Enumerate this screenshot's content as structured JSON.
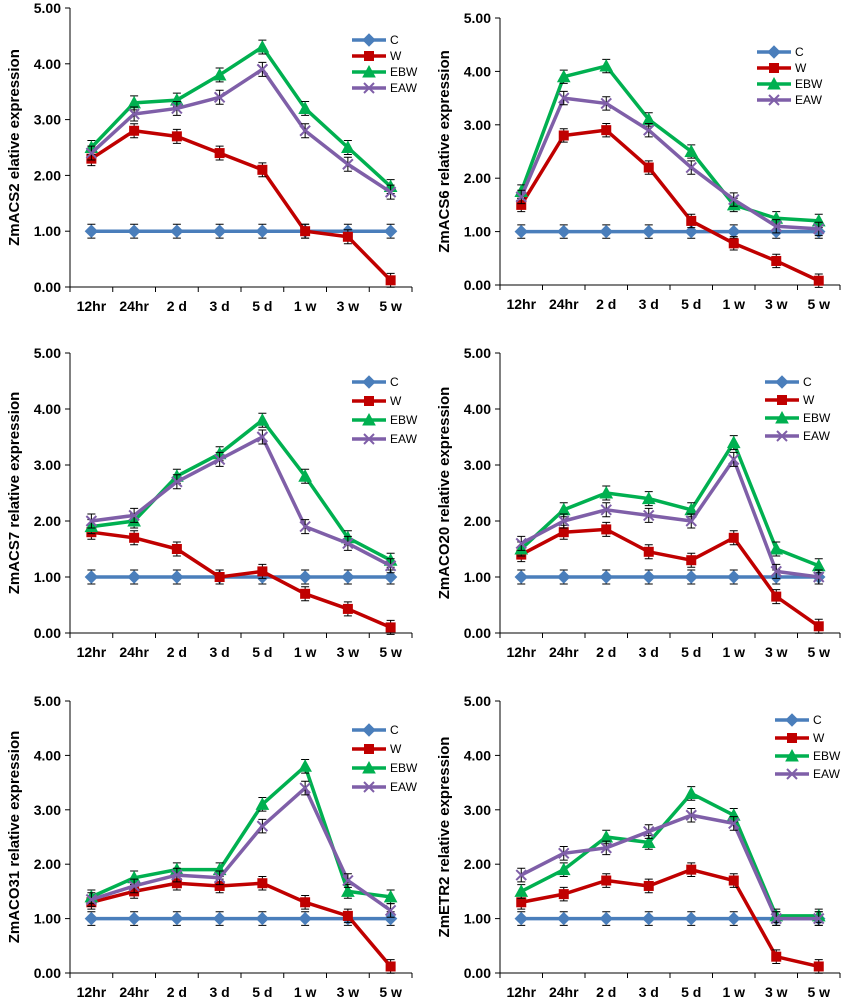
{
  "figure": {
    "title": ""
  },
  "series_styles": [
    {
      "name": "C",
      "color": "#4A7EBB",
      "marker": "diamond"
    },
    {
      "name": "W",
      "color": "#C00000",
      "marker": "square"
    },
    {
      "name": "EBW",
      "color": "#00B050",
      "marker": "triangle"
    },
    {
      "name": "EAW",
      "color": "#7F5FA8",
      "marker": "x"
    }
  ],
  "chart_data": [
    {
      "type": "line",
      "ylabel": "ZmACS2 elative expression",
      "categories": [
        "12hr",
        "24hr",
        "2 d",
        "3 d",
        "5 d",
        "1 w",
        "3 w",
        "5 w"
      ],
      "yticks": [
        "0.00",
        "1.00",
        "2.00",
        "3.00",
        "4.00",
        "5.00"
      ],
      "ylim": [
        0,
        5
      ],
      "series": [
        {
          "name": "C",
          "values": [
            1.0,
            1.0,
            1.0,
            1.0,
            1.0,
            1.0,
            1.0,
            1.0
          ]
        },
        {
          "name": "W",
          "values": [
            2.3,
            2.8,
            2.7,
            2.4,
            2.1,
            1.0,
            0.9,
            0.12
          ]
        },
        {
          "name": "EBW",
          "values": [
            2.5,
            3.3,
            3.35,
            3.8,
            4.3,
            3.2,
            2.5,
            1.8
          ]
        },
        {
          "name": "EAW",
          "values": [
            2.4,
            3.1,
            3.2,
            3.4,
            3.9,
            2.8,
            2.2,
            1.7
          ]
        }
      ]
    },
    {
      "type": "line",
      "ylabel": "ZmACS6 relative expression",
      "categories": [
        "12hr",
        "24hr",
        "2 d",
        "3 d",
        "5 d",
        "1 w",
        "3 w",
        "5 w"
      ],
      "yticks": [
        "0.00",
        "1.00",
        "2.00",
        "3.00",
        "4.00",
        "5.00"
      ],
      "ylim": [
        0,
        5
      ],
      "series": [
        {
          "name": "C",
          "values": [
            1.0,
            1.0,
            1.0,
            1.0,
            1.0,
            1.0,
            1.0,
            1.0
          ]
        },
        {
          "name": "W",
          "values": [
            1.5,
            2.8,
            2.9,
            2.2,
            1.2,
            0.78,
            0.45,
            0.08
          ]
        },
        {
          "name": "EBW",
          "values": [
            1.75,
            3.9,
            4.1,
            3.1,
            2.5,
            1.5,
            1.25,
            1.2
          ]
        },
        {
          "name": "EAW",
          "values": [
            1.65,
            3.5,
            3.4,
            2.9,
            2.2,
            1.6,
            1.1,
            1.05
          ]
        }
      ]
    },
    {
      "type": "line",
      "ylabel": "ZmACS7 relative expression",
      "categories": [
        "12hr",
        "24hr",
        "2 d",
        "3 d",
        "5 d",
        "1 w",
        "3 w",
        "5 w"
      ],
      "yticks": [
        "0.00",
        "1.00",
        "2.00",
        "3.00",
        "4.00",
        "5.00"
      ],
      "ylim": [
        0,
        5
      ],
      "series": [
        {
          "name": "C",
          "values": [
            1.0,
            1.0,
            1.0,
            1.0,
            1.0,
            1.0,
            1.0,
            1.0
          ]
        },
        {
          "name": "W",
          "values": [
            1.8,
            1.7,
            1.5,
            1.0,
            1.1,
            0.7,
            0.43,
            0.1
          ]
        },
        {
          "name": "EBW",
          "values": [
            1.9,
            2.0,
            2.8,
            3.2,
            3.8,
            2.8,
            1.7,
            1.3
          ]
        },
        {
          "name": "EAW",
          "values": [
            2.0,
            2.1,
            2.7,
            3.1,
            3.5,
            1.9,
            1.6,
            1.2
          ]
        }
      ]
    },
    {
      "type": "line",
      "ylabel": "ZmACO20 relative expression",
      "categories": [
        "12hr",
        "24hr",
        "2 d",
        "3 d",
        "5 d",
        "1 w",
        "3 w",
        "5 w"
      ],
      "yticks": [
        "0.00",
        "1.00",
        "2.00",
        "3.00",
        "4.00",
        "5.00"
      ],
      "ylim": [
        0,
        5
      ],
      "series": [
        {
          "name": "C",
          "values": [
            1.0,
            1.0,
            1.0,
            1.0,
            1.0,
            1.0,
            1.0,
            1.0
          ]
        },
        {
          "name": "W",
          "values": [
            1.4,
            1.8,
            1.85,
            1.45,
            1.3,
            1.7,
            0.65,
            0.12
          ]
        },
        {
          "name": "EBW",
          "values": [
            1.5,
            2.2,
            2.5,
            2.4,
            2.2,
            3.4,
            1.5,
            1.2
          ]
        },
        {
          "name": "EAW",
          "values": [
            1.6,
            2.0,
            2.2,
            2.1,
            2.0,
            3.1,
            1.1,
            1.0
          ]
        }
      ]
    },
    {
      "type": "line",
      "ylabel": "ZmACO31 relative expression",
      "categories": [
        "12hr",
        "24hr",
        "2 d",
        "3 d",
        "5 d",
        "1 w",
        "3 w",
        "5 w"
      ],
      "yticks": [
        "0.00",
        "1.00",
        "2.00",
        "3.00",
        "4.00",
        "5.00"
      ],
      "ylim": [
        0,
        5
      ],
      "series": [
        {
          "name": "C",
          "values": [
            1.0,
            1.0,
            1.0,
            1.0,
            1.0,
            1.0,
            1.0,
            1.0
          ]
        },
        {
          "name": "W",
          "values": [
            1.3,
            1.5,
            1.65,
            1.6,
            1.65,
            1.3,
            1.05,
            0.12
          ]
        },
        {
          "name": "EBW",
          "values": [
            1.4,
            1.75,
            1.9,
            1.9,
            3.1,
            3.8,
            1.5,
            1.4
          ]
        },
        {
          "name": "EAW",
          "values": [
            1.35,
            1.6,
            1.8,
            1.75,
            2.7,
            3.4,
            1.7,
            1.15
          ]
        }
      ]
    },
    {
      "type": "line",
      "ylabel": "ZmETR2 relative expression",
      "categories": [
        "12hr",
        "24hr",
        "2 d",
        "3 d",
        "5 d",
        "1 w",
        "3 w",
        "5 w"
      ],
      "yticks": [
        "0.00",
        "1.00",
        "2.00",
        "3.00",
        "4.00",
        "5.00"
      ],
      "ylim": [
        0,
        5
      ],
      "series": [
        {
          "name": "C",
          "values": [
            1.0,
            1.0,
            1.0,
            1.0,
            1.0,
            1.0,
            1.0,
            1.0
          ]
        },
        {
          "name": "W",
          "values": [
            1.3,
            1.45,
            1.7,
            1.6,
            1.9,
            1.7,
            0.3,
            0.12
          ]
        },
        {
          "name": "EBW",
          "values": [
            1.5,
            1.9,
            2.5,
            2.4,
            3.3,
            2.9,
            1.05,
            1.05
          ]
        },
        {
          "name": "EAW",
          "values": [
            1.8,
            2.2,
            2.3,
            2.6,
            2.9,
            2.75,
            1.0,
            1.0
          ]
        }
      ]
    }
  ]
}
